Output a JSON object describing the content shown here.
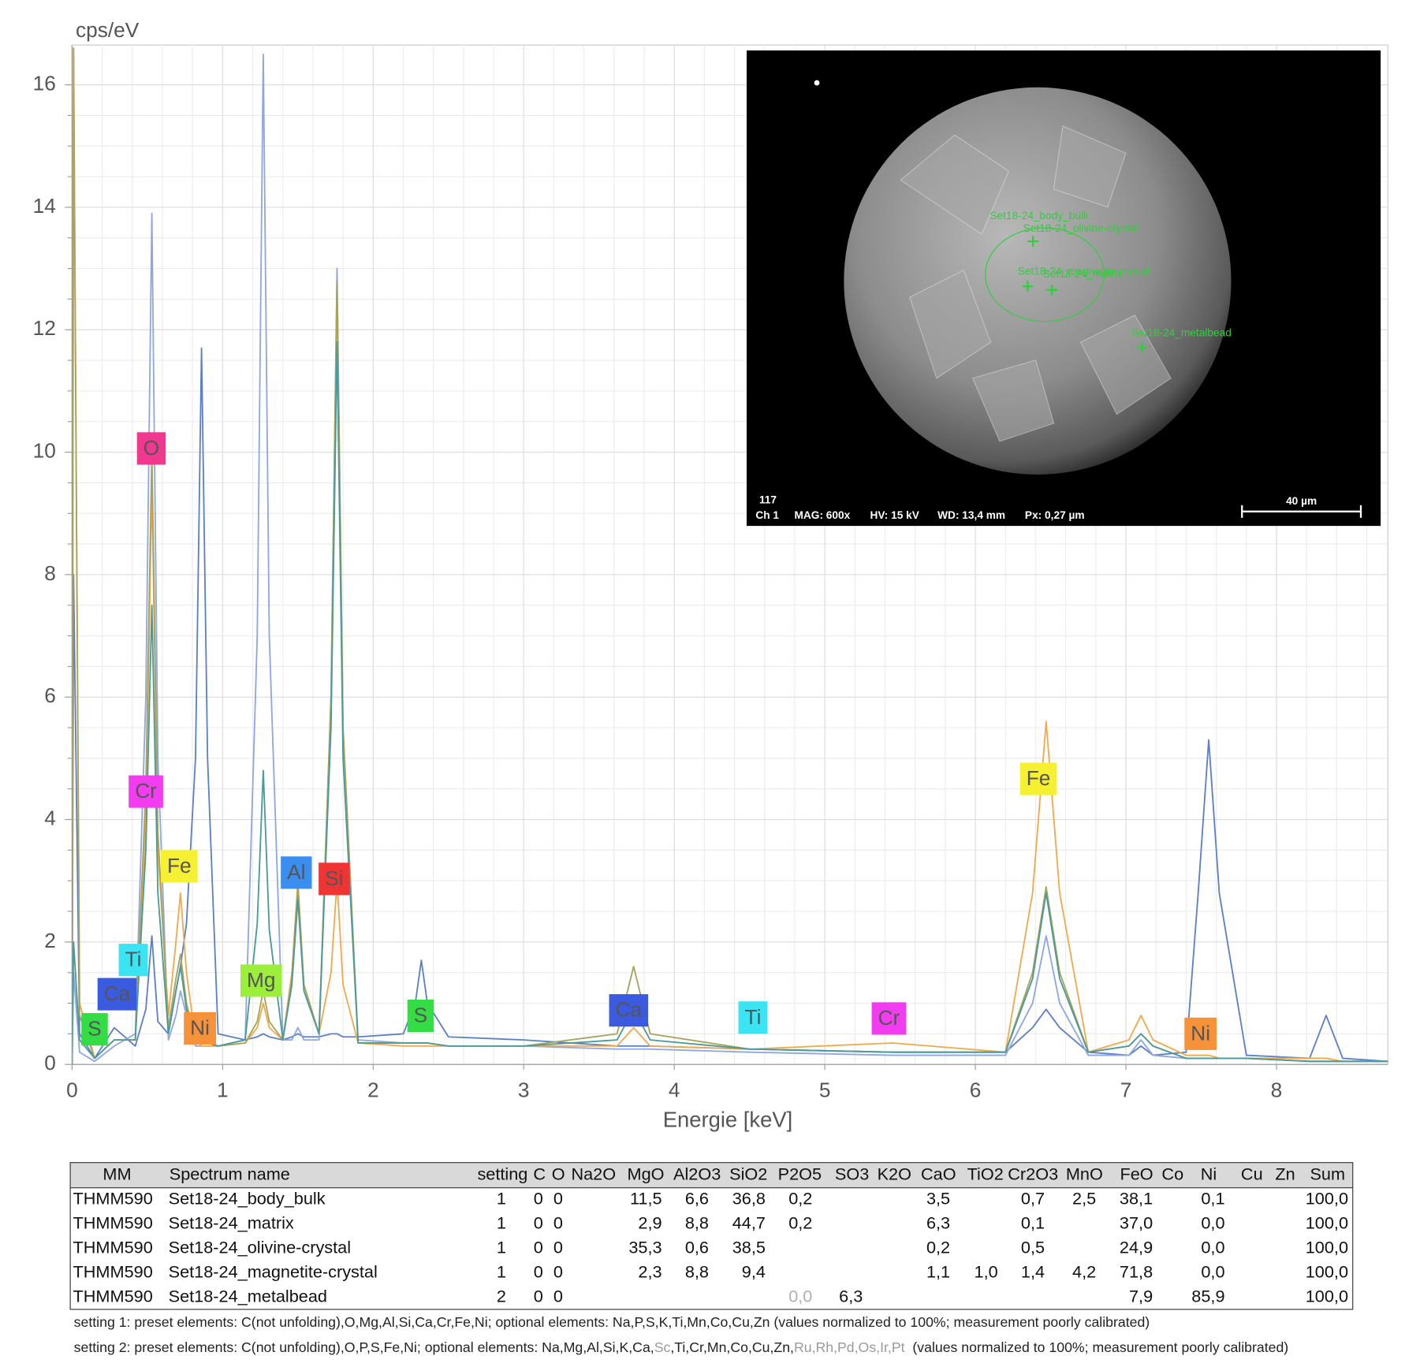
{
  "chart_data": {
    "type": "line",
    "y_label": "cps/eV",
    "x_label": "Energie [keV]",
    "xlim": [
      0,
      8.74
    ],
    "ylim": [
      0,
      16.65
    ],
    "xticks": [
      0,
      1,
      2,
      3,
      4,
      5,
      6,
      7,
      8
    ],
    "yticks": [
      0,
      2,
      4,
      6,
      8,
      10,
      12,
      14,
      16
    ],
    "grid": true,
    "x": [
      0,
      0.01,
      0.05,
      0.15,
      0.28,
      0.42,
      0.49,
      0.53,
      0.57,
      0.64,
      0.69,
      0.72,
      0.76,
      0.82,
      0.86,
      0.9,
      0.97,
      1.15,
      1.23,
      1.27,
      1.31,
      1.4,
      1.46,
      1.5,
      1.54,
      1.64,
      1.72,
      1.76,
      1.8,
      1.9,
      2.2,
      2.28,
      2.32,
      2.36,
      2.5,
      3.0,
      3.62,
      3.73,
      3.84,
      4.5,
      5.45,
      6.2,
      6.38,
      6.47,
      6.56,
      6.75,
      7.02,
      7.1,
      7.18,
      7.4,
      7.48,
      7.55,
      7.62,
      7.8,
      8.22,
      8.33,
      8.44,
      8.74
    ],
    "series": [
      {
        "color": "#5b7fc8",
        "values": [
          0,
          8.0,
          0.5,
          0.1,
          0.6,
          0.3,
          0.9,
          2.1,
          0.7,
          0.5,
          1.2,
          1.6,
          2.3,
          5.0,
          11.7,
          5.0,
          0.5,
          0.4,
          0.45,
          0.5,
          0.45,
          0.4,
          0.45,
          0.5,
          0.45,
          0.45,
          0.5,
          0.5,
          0.45,
          0.45,
          0.5,
          1.0,
          1.7,
          1.0,
          0.45,
          0.4,
          0.3,
          0.3,
          0.3,
          0.25,
          0.2,
          0.2,
          0.6,
          0.9,
          0.6,
          0.2,
          0.15,
          0.3,
          0.15,
          0.2,
          2.8,
          5.3,
          2.8,
          0.15,
          0.1,
          0.8,
          0.1,
          0.05
        ]
      },
      {
        "color": "#8ea6e2",
        "values": [
          0,
          1.5,
          0.2,
          0.05,
          0.3,
          0.5,
          6.0,
          13.9,
          5.0,
          0.4,
          0.8,
          1.2,
          0.8,
          0.3,
          0.3,
          0.3,
          0.3,
          0.4,
          7.0,
          16.5,
          7.0,
          0.4,
          0.4,
          0.6,
          0.4,
          0.4,
          6.0,
          13.0,
          5.5,
          0.4,
          0.35,
          0.35,
          0.35,
          0.35,
          0.3,
          0.3,
          0.25,
          0.25,
          0.25,
          0.2,
          0.15,
          0.15,
          1.0,
          2.1,
          1.0,
          0.15,
          0.15,
          0.4,
          0.15,
          0.1,
          0.1,
          0.1,
          0.1,
          0.1,
          0.05,
          0.05,
          0.05,
          0.05
        ]
      },
      {
        "color": "#f2a94a",
        "values": [
          0,
          16.6,
          1.0,
          0.1,
          0.4,
          0.4,
          4.0,
          9.5,
          3.5,
          0.8,
          2.0,
          2.8,
          1.5,
          0.4,
          0.3,
          0.3,
          0.3,
          0.35,
          0.6,
          1.0,
          0.6,
          0.4,
          1.5,
          3.0,
          1.3,
          0.5,
          1.5,
          3.0,
          1.3,
          0.35,
          0.3,
          0.3,
          0.3,
          0.3,
          0.3,
          0.3,
          0.3,
          0.6,
          0.3,
          0.25,
          0.35,
          0.2,
          2.8,
          5.6,
          2.8,
          0.2,
          0.4,
          0.8,
          0.4,
          0.15,
          0.15,
          0.15,
          0.1,
          0.1,
          0.1,
          0.1,
          0.05,
          0.05
        ]
      },
      {
        "color": "#a8a35a",
        "values": [
          0,
          16.6,
          0.8,
          0.1,
          0.4,
          0.4,
          4.5,
          10.0,
          3.8,
          0.6,
          1.4,
          1.8,
          1.0,
          0.4,
          0.35,
          0.35,
          0.3,
          0.35,
          0.7,
          1.2,
          0.7,
          0.4,
          1.4,
          2.9,
          1.3,
          0.5,
          6.0,
          12.8,
          5.5,
          0.35,
          0.35,
          0.35,
          0.35,
          0.35,
          0.3,
          0.3,
          0.5,
          1.6,
          0.5,
          0.25,
          0.2,
          0.2,
          1.5,
          2.9,
          1.5,
          0.2,
          0.3,
          0.5,
          0.3,
          0.1,
          0.1,
          0.1,
          0.1,
          0.1,
          0.05,
          0.05,
          0.05,
          0.05
        ]
      },
      {
        "color": "#4a9a9a",
        "values": [
          0,
          2.0,
          0.4,
          0.1,
          0.4,
          0.4,
          3.5,
          7.5,
          2.8,
          0.5,
          1.2,
          1.6,
          0.9,
          0.4,
          0.35,
          0.35,
          0.3,
          0.4,
          2.3,
          4.8,
          2.2,
          0.4,
          1.3,
          2.7,
          1.2,
          0.5,
          5.5,
          11.8,
          5.0,
          0.35,
          0.35,
          0.35,
          0.35,
          0.35,
          0.3,
          0.3,
          0.4,
          0.9,
          0.4,
          0.25,
          0.2,
          0.2,
          1.4,
          2.8,
          1.4,
          0.2,
          0.3,
          0.5,
          0.3,
          0.1,
          0.1,
          0.1,
          0.1,
          0.1,
          0.05,
          0.05,
          0.05,
          0.05
        ]
      }
    ],
    "annotations": [
      {
        "text": "S",
        "color": "#33dd44"
      },
      {
        "text": "Ca",
        "color": "#3a5ae0"
      },
      {
        "text": "Ti",
        "color": "#3ae4f2"
      },
      {
        "text": "Cr",
        "color": "#f23cf0"
      },
      {
        "text": "O",
        "color": "#f0388e"
      },
      {
        "text": "Fe",
        "color": "#f5f032"
      },
      {
        "text": "Ni",
        "color": "#f5923a"
      },
      {
        "text": "Mg",
        "color": "#9bee3a"
      },
      {
        "text": "Al",
        "color": "#3a8ef0"
      },
      {
        "text": "Si",
        "color": "#f03434"
      },
      {
        "text": "S",
        "color": "#33dd44"
      },
      {
        "text": "Ca",
        "color": "#3a5ae0"
      },
      {
        "text": "Ti",
        "color": "#3ae4f2"
      },
      {
        "text": "Cr",
        "color": "#f23cf0"
      },
      {
        "text": "Fe",
        "color": "#f5f032"
      },
      {
        "text": "Ni",
        "color": "#f5923a"
      }
    ],
    "inset": {
      "markers": [
        "Set18-24_body_bulk",
        "Set18-24_olivine-crystal",
        "Set18-24_magnetite-crystal",
        "Set18-24_matrix",
        "Set18-24_metalbead"
      ],
      "footer": [
        "117",
        "Ch 1",
        "MAG: 600x",
        "HV: 15 kV",
        "WD: 13,4 mm",
        "Px: 0,27 µm"
      ],
      "scale_bar": "40 µm"
    }
  },
  "table": {
    "header": [
      "MM",
      "Spectrum name",
      "setting",
      "C",
      "O",
      "Na2O",
      "MgO",
      "Al2O3",
      "SiO2",
      "P2O5",
      "SO3",
      "K2O",
      "CaO",
      "TiO2",
      "Cr2O3",
      "MnO",
      "FeO",
      "Co",
      "Ni",
      "Cu",
      "Zn",
      "Sum"
    ],
    "rows": [
      [
        "THMM590",
        "Set18-24_body_bulk",
        "1",
        "0",
        "0",
        null,
        "11,5",
        "6,6",
        "36,8",
        "0,2",
        null,
        null,
        "3,5",
        null,
        "0,7",
        "2,5",
        "38,1",
        null,
        "0,1",
        null,
        null,
        "100,0"
      ],
      [
        "THMM590",
        "Set18-24_matrix",
        "1",
        "0",
        "0",
        null,
        "2,9",
        "8,8",
        "44,7",
        "0,2",
        null,
        null,
        "6,3",
        null,
        "0,1",
        null,
        "37,0",
        null,
        "0,0",
        null,
        null,
        "100,0"
      ],
      [
        "THMM590",
        "Set18-24_olivine-crystal",
        "1",
        "0",
        "0",
        null,
        "35,3",
        "0,6",
        "38,5",
        null,
        null,
        null,
        "0,2",
        null,
        "0,5",
        null,
        "24,9",
        null,
        "0,0",
        null,
        null,
        "100,0"
      ],
      [
        "THMM590",
        "Set18-24_magnetite-crystal",
        "1",
        "0",
        "0",
        null,
        "2,3",
        "8,8",
        "9,4",
        null,
        null,
        null,
        "1,1",
        "1,0",
        "1,4",
        "4,2",
        "71,8",
        null,
        "0,0",
        null,
        null,
        "100,0"
      ],
      [
        "THMM590",
        "Set18-24_metalbead",
        "2",
        "0",
        "0",
        null,
        null,
        null,
        null,
        "0,0",
        "6,3",
        null,
        null,
        null,
        null,
        null,
        "7,9",
        null,
        "85,9",
        null,
        null,
        "100,0"
      ]
    ],
    "notes": [
      [
        "setting 1: preset elements: C(not unfolding),O,Mg,Al,Si,Ca,Cr,Fe,Ni; optional elements: Na,P,S,K,Ti,Mn,Co,Cu,Zn (values normalized to 100%; measurement poorly calibrated)"
      ],
      [
        "setting 2: preset elements: C(not unfolding),O,P,S,Fe,Ni; optional elements: Na,Mg,Al,Si,K,Ca,",
        "Sc",
        ",Ti,Cr,Mn,Co,Cu,Zn,",
        "Ru,Rh,Pd,Os,Ir,Pt",
        "  (values normalized to 100%; measurement poorly calibrated)"
      ]
    ]
  }
}
